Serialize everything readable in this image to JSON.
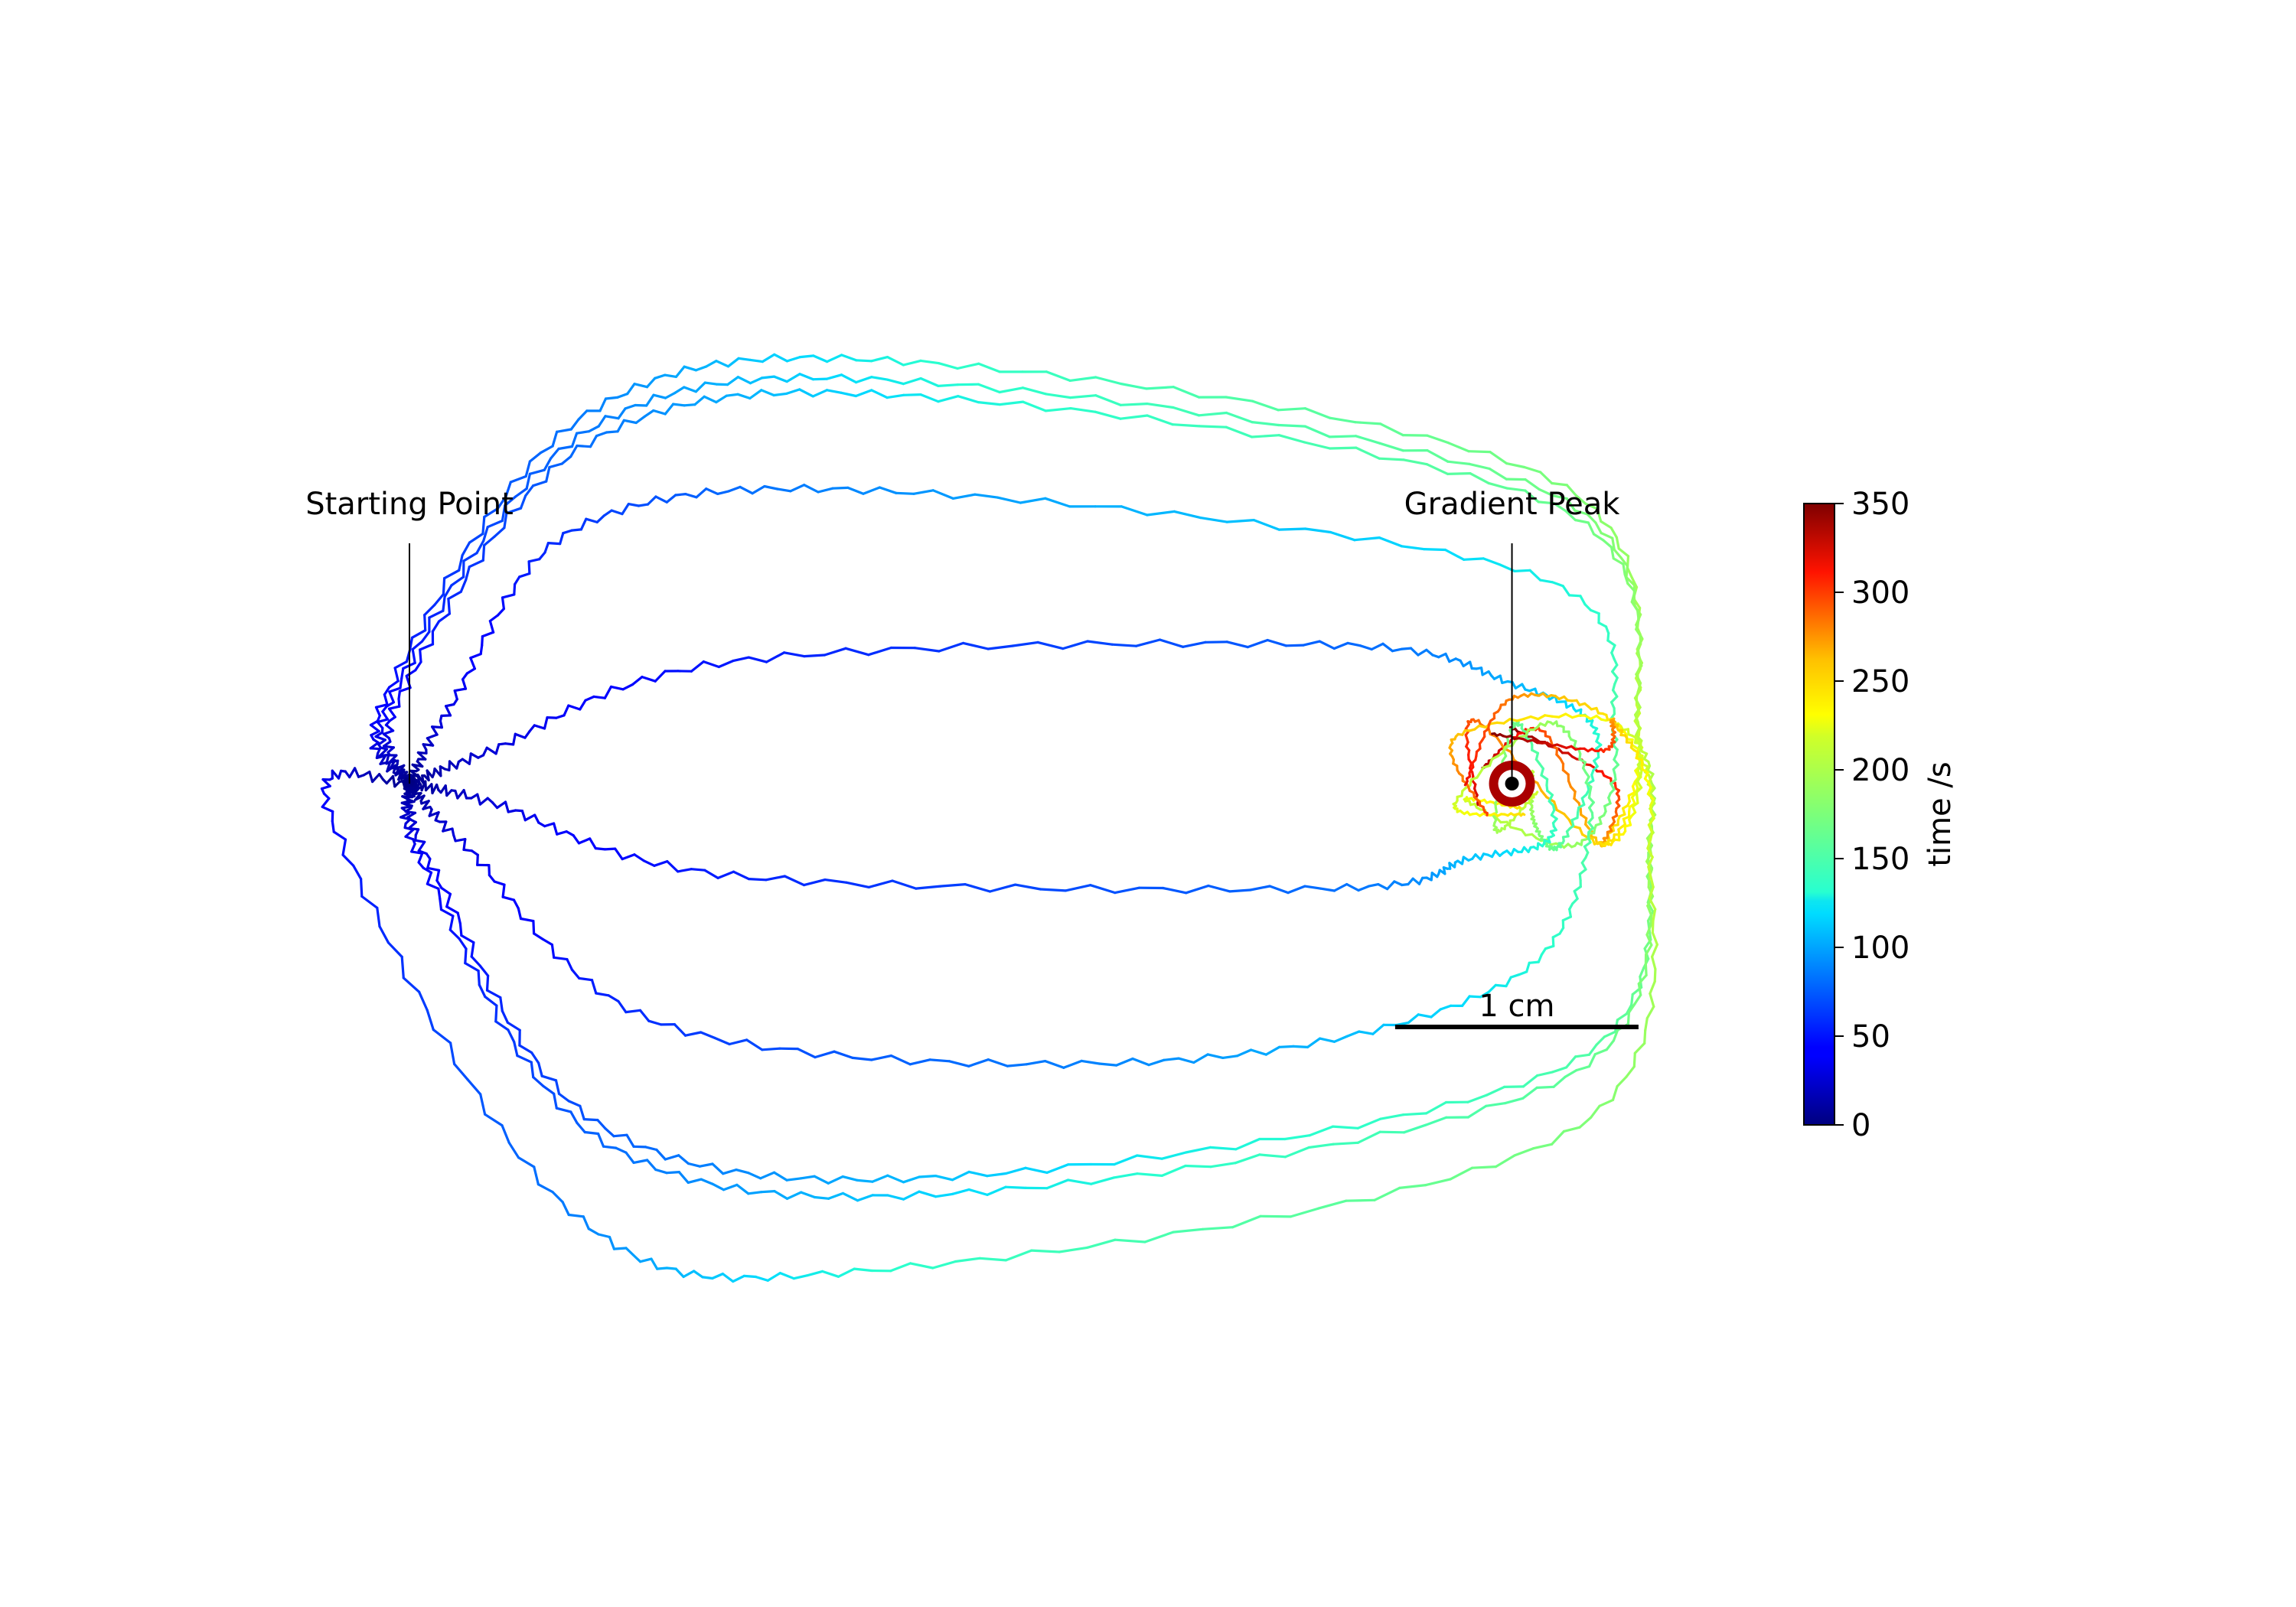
{
  "chart_data": {
    "type": "line",
    "title": "",
    "xlabel": "",
    "ylabel": "",
    "axes_visible": false,
    "grid": false,
    "units": "cm",
    "annotations": [
      {
        "name": "start",
        "text": "Starting Point",
        "x": 0.0,
        "y": 0.0
      },
      {
        "name": "peak",
        "text": "Gradient Peak",
        "x": 4.53,
        "y": 0.0
      }
    ],
    "scale_bar": {
      "label": "1 cm",
      "length": 1.0,
      "x_start": 4.05,
      "y": -1.0
    },
    "colorbar": {
      "label": "time /s",
      "colormap": "jet",
      "range": [
        0,
        350
      ],
      "ticks": [
        0,
        50,
        100,
        150,
        200,
        250,
        300,
        350
      ],
      "position": "right"
    },
    "target": {
      "x": 4.53,
      "y": 0.0,
      "outer_color": "#aa0000",
      "ring_color": "#ffffff",
      "center_color": "#000000"
    },
    "series": [
      {
        "launch_angle_deg": 108,
        "apex": [
          2.1,
          1.73
        ],
        "turn_x": 5.05,
        "end_angle_deg": 0,
        "end_radius": 0.42,
        "duration_s": 350
      },
      {
        "launch_angle_deg": 103,
        "apex": [
          2.1,
          1.65
        ],
        "turn_x": 5.05,
        "end_angle_deg": 60,
        "end_radius": 0.25,
        "duration_s": 340
      },
      {
        "launch_angle_deg": 97,
        "apex": [
          2.1,
          1.59
        ],
        "turn_x": 5.05,
        "end_angle_deg": 120,
        "end_radius": 0.3,
        "duration_s": 330
      },
      {
        "launch_angle_deg": 62,
        "apex": [
          2.0,
          1.2
        ],
        "turn_x": 4.95,
        "end_angle_deg": 200,
        "end_radius": 0.2,
        "duration_s": 250
      },
      {
        "launch_angle_deg": 22,
        "apex": [
          3.8,
          0.57
        ],
        "turn_x": 4.88,
        "end_angle_deg": 300,
        "end_radius": 0.18,
        "duration_s": 210
      },
      {
        "launch_angle_deg": -13,
        "apex": [
          3.8,
          -0.43
        ],
        "turn_x": 4.7,
        "end_angle_deg": 250,
        "end_radius": 0.2,
        "duration_s": 220
      },
      {
        "launch_angle_deg": -48,
        "apex": [
          3.1,
          -1.14
        ],
        "turn_x": 4.85,
        "end_angle_deg": 200,
        "end_radius": 0.25,
        "duration_s": 250
      },
      {
        "launch_angle_deg": -75,
        "apex": [
          2.3,
          -1.61
        ],
        "turn_x": 5.1,
        "end_angle_deg": 140,
        "end_radius": 0.3,
        "duration_s": 300
      },
      {
        "launch_angle_deg": -80,
        "apex": [
          2.3,
          -1.68
        ],
        "turn_x": 5.1,
        "end_angle_deg": 90,
        "end_radius": 0.35,
        "duration_s": 320
      },
      {
        "launch_angle_deg": -160,
        "apex": [
          1.9,
          -2.0
        ],
        "turn_x": 5.1,
        "end_angle_deg": 20,
        "end_radius": 0.4,
        "duration_s": 350
      }
    ]
  }
}
